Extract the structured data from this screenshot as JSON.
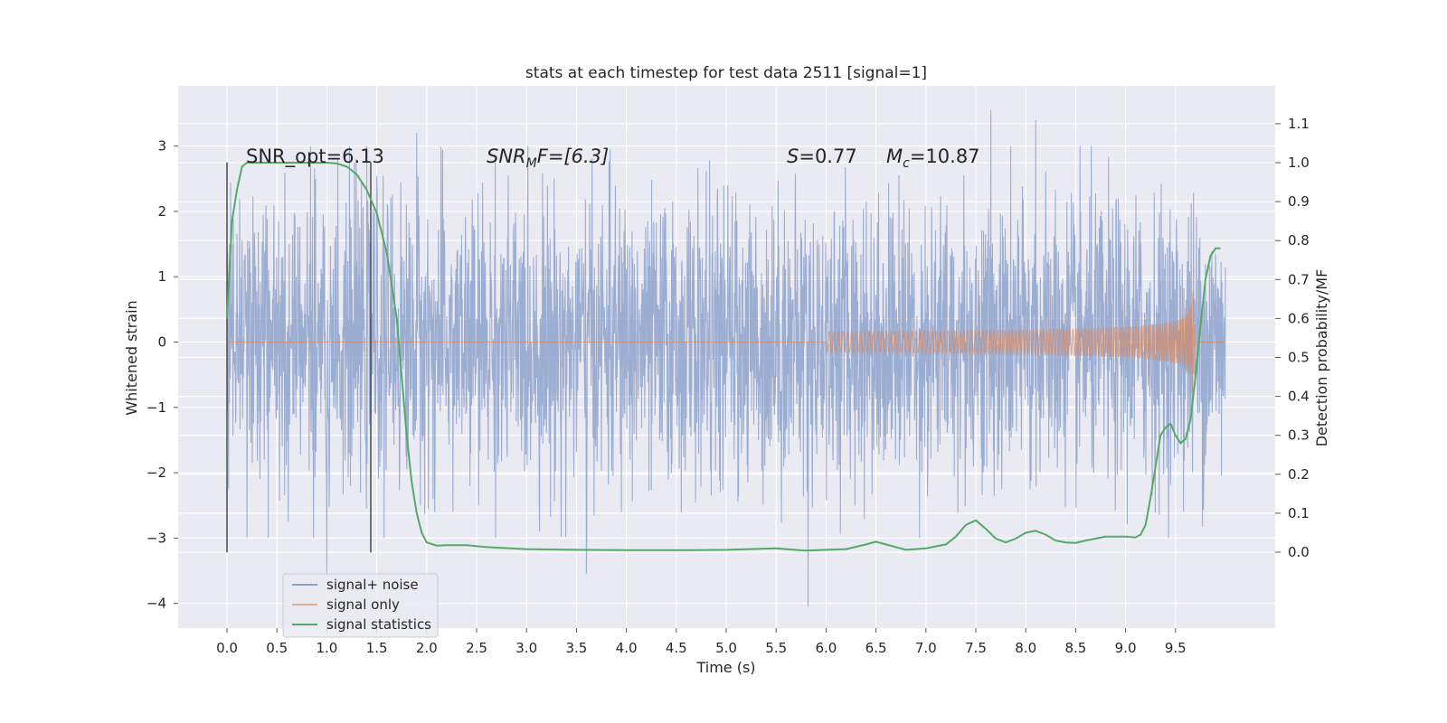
{
  "chart_data": {
    "type": "line",
    "title": "stats at each timestep for test data 2511 [signal=1]",
    "xlabel": "Time (s)",
    "ylabel": "Whitened strain",
    "ylabel_right": "Detection probability/MF",
    "xlim": [
      -0.5,
      10.5
    ],
    "ylim": [
      -4.4,
      3.9
    ],
    "ylim_right": [
      -0.2,
      1.2
    ],
    "x_ticks": [
      "0.0",
      "0.5",
      "1.0",
      "1.5",
      "2.0",
      "2.5",
      "3.0",
      "3.5",
      "4.0",
      "4.5",
      "5.0",
      "5.5",
      "6.0",
      "6.5",
      "7.0",
      "7.5",
      "8.0",
      "8.5",
      "9.0",
      "9.5"
    ],
    "y_ticks": [
      "3",
      "2",
      "1",
      "0",
      "−1",
      "−2",
      "−3",
      "−4"
    ],
    "y_ticks_right": [
      "1.1",
      "1.0",
      "0.9",
      "0.8",
      "0.7",
      "0.6",
      "0.5",
      "0.4",
      "0.3",
      "0.2",
      "0.1",
      "0.0"
    ],
    "grid": true,
    "background": "#eaeaf2",
    "legend_position": "lower-left",
    "annotations": {
      "snr_opt": "SNR_opt=6.13",
      "snr_mf_main": "SNR",
      "snr_mf_sub": "M",
      "snr_mf_rest": "F=[6.3]",
      "s_main": "S",
      "s_rest": "=0.77",
      "mc_main": "M",
      "mc_sub": "c",
      "mc_rest": "=10.87"
    },
    "markers_x": [
      0.0,
      1.44
    ],
    "series": [
      {
        "name": "signal+ noise",
        "color": "#8ea2cc",
        "axis": "left",
        "description_values": {
          "t_start": 0.0,
          "t_end": 10.0,
          "envelope_typical": 1.5,
          "peaks": [
            [
              1.9,
              3.2
            ],
            [
              7.65,
              3.55
            ],
            [
              8.1,
              3.4
            ],
            [
              5.82,
              -4.05
            ],
            [
              1.0,
              -3.6
            ],
            [
              3.6,
              -3.55
            ]
          ]
        }
      },
      {
        "name": "signal only",
        "color": "#dd8452",
        "axis": "left",
        "chirp": {
          "t_start": 6.0,
          "t_peak": 9.67,
          "t_end": 9.7,
          "peak_amplitude": 0.85
        }
      },
      {
        "name": "signal statistics",
        "color": "#55a868",
        "axis": "right",
        "x": [
          0.0,
          0.05,
          0.1,
          0.15,
          0.2,
          0.3,
          0.5,
          0.8,
          1.0,
          1.1,
          1.2,
          1.3,
          1.4,
          1.5,
          1.6,
          1.7,
          1.75,
          1.8,
          1.85,
          1.9,
          1.95,
          2.0,
          2.1,
          2.2,
          2.4,
          2.6,
          3.0,
          3.5,
          4.0,
          4.5,
          5.0,
          5.5,
          5.8,
          6.0,
          6.2,
          6.4,
          6.5,
          6.6,
          6.8,
          7.0,
          7.2,
          7.3,
          7.4,
          7.5,
          7.6,
          7.7,
          7.8,
          7.9,
          8.0,
          8.1,
          8.2,
          8.3,
          8.4,
          8.5,
          8.6,
          8.8,
          9.0,
          9.1,
          9.15,
          9.2,
          9.25,
          9.3,
          9.35,
          9.4,
          9.45,
          9.5,
          9.55,
          9.6,
          9.65,
          9.7,
          9.75,
          9.8,
          9.85,
          9.9,
          9.95
        ],
        "y": [
          0.6,
          0.85,
          0.93,
          0.99,
          1.0,
          1.0,
          1.0,
          1.0,
          1.0,
          0.998,
          0.99,
          0.97,
          0.93,
          0.87,
          0.77,
          0.6,
          0.45,
          0.3,
          0.18,
          0.1,
          0.05,
          0.025,
          0.017,
          0.018,
          0.018,
          0.013,
          0.008,
          0.006,
          0.005,
          0.005,
          0.006,
          0.01,
          0.004,
          0.006,
          0.008,
          0.02,
          0.027,
          0.02,
          0.006,
          0.01,
          0.02,
          0.04,
          0.07,
          0.082,
          0.06,
          0.035,
          0.025,
          0.035,
          0.05,
          0.055,
          0.045,
          0.03,
          0.025,
          0.024,
          0.03,
          0.04,
          0.04,
          0.038,
          0.045,
          0.07,
          0.14,
          0.22,
          0.3,
          0.32,
          0.33,
          0.3,
          0.28,
          0.29,
          0.34,
          0.45,
          0.58,
          0.7,
          0.76,
          0.78,
          0.78
        ]
      }
    ]
  }
}
